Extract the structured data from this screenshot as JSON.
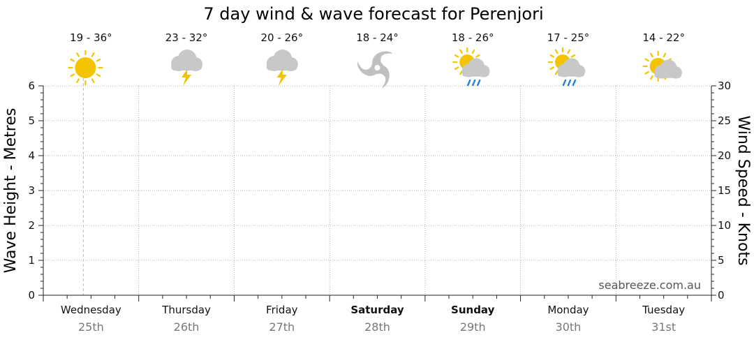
{
  "chart_data": {
    "type": "line",
    "title": "7 day wind & wave forecast for Perenjori",
    "left_axis": {
      "label": "Wave Height - Metres",
      "ylim": [
        0,
        6
      ],
      "ticks": [
        "0",
        "1",
        "2",
        "3",
        "4",
        "5",
        "6"
      ]
    },
    "right_axis": {
      "label": "Wind Speed - Knots",
      "ylim": [
        0,
        30
      ],
      "ticks": [
        "0",
        "5",
        "10",
        "15",
        "20",
        "25",
        "30"
      ]
    },
    "grid": true,
    "credit": "seabreeze.com.au",
    "current_marker_day_index": 0,
    "days": [
      {
        "name": "Wednesday",
        "date": "25th",
        "temps": "19 - 36°",
        "icon": "sunny-icon",
        "weekend": false
      },
      {
        "name": "Thursday",
        "date": "26th",
        "temps": "23 - 32°",
        "icon": "storm-icon",
        "weekend": false
      },
      {
        "name": "Friday",
        "date": "27th",
        "temps": "20 - 26°",
        "icon": "storm-icon",
        "weekend": false
      },
      {
        "name": "Saturday",
        "date": "28th",
        "temps": "18 - 24°",
        "icon": "cyclone-icon",
        "weekend": true
      },
      {
        "name": "Sunday",
        "date": "29th",
        "temps": "18 - 26°",
        "icon": "sun-cloud-rain-icon",
        "weekend": true
      },
      {
        "name": "Monday",
        "date": "30th",
        "temps": "17 - 25°",
        "icon": "sun-cloud-rain-icon",
        "weekend": false
      },
      {
        "name": "Tuesday",
        "date": "31st",
        "temps": "14 - 22°",
        "icon": "partly-cloudy-icon",
        "weekend": false
      }
    ],
    "series": []
  },
  "colors": {
    "sun": "#f5c400",
    "cloud": "#c8c8c8",
    "bolt": "#f2c200",
    "rain": "#2a7fd4",
    "cyclone": "#c0c0c0",
    "grid": "#999999",
    "marker": "#f4a9a0"
  }
}
